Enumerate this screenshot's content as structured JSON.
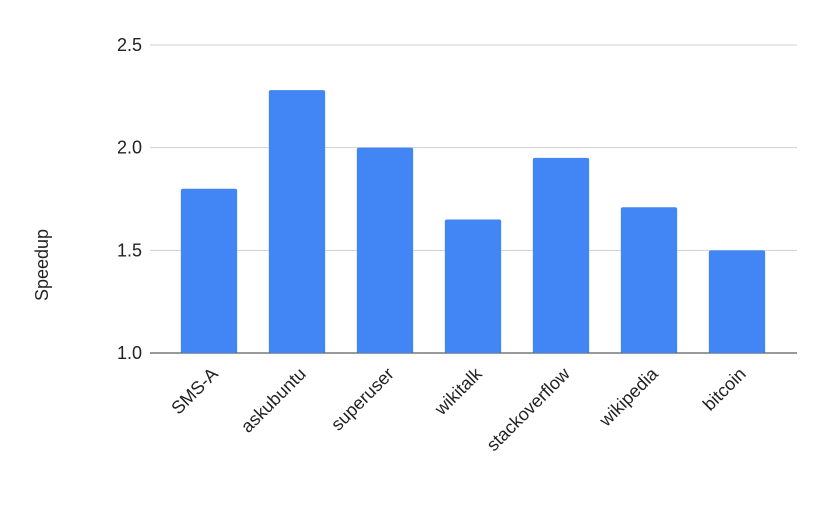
{
  "chart_data": {
    "type": "bar",
    "y_label": "Speedup",
    "categories": [
      "SMS-A",
      "askubuntu",
      "superuser",
      "wikitalk",
      "stackoverflow",
      "wikipedia",
      "bitcoin"
    ],
    "values": [
      1.8,
      2.28,
      2.0,
      1.65,
      1.95,
      1.71,
      1.5
    ],
    "color": "#4285f4",
    "ylim": [
      1.0,
      2.5
    ],
    "yticks": [
      {
        "value": 1.0,
        "label": "1.0"
      },
      1.5,
      {
        "value": 2.0,
        "label": "2.0"
      },
      2.5
    ],
    "grid": true
  }
}
